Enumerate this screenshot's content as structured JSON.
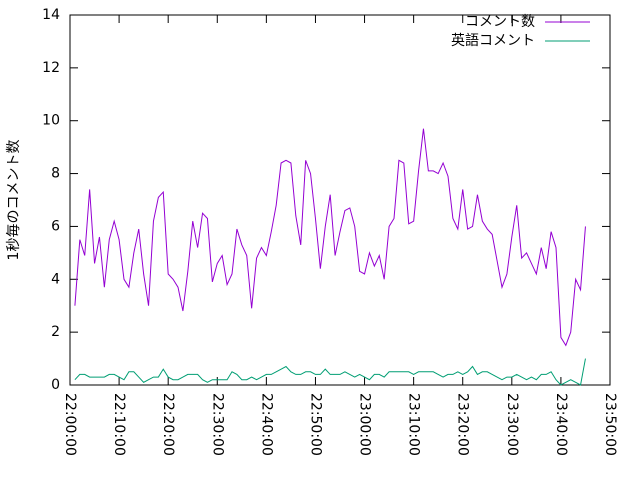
{
  "chart_data": {
    "type": "line",
    "y_label": "1秒毎のコメント数",
    "x": [
      "22:01:00",
      "22:02:00",
      "22:03:00",
      "22:04:00",
      "22:05:00",
      "22:06:00",
      "22:07:00",
      "22:08:00",
      "22:09:00",
      "22:10:00",
      "22:11:00",
      "22:12:00",
      "22:13:00",
      "22:14:00",
      "22:15:00",
      "22:16:00",
      "22:17:00",
      "22:18:00",
      "22:19:00",
      "22:20:00",
      "22:21:00",
      "22:22:00",
      "22:23:00",
      "22:24:00",
      "22:25:00",
      "22:26:00",
      "22:27:00",
      "22:28:00",
      "22:29:00",
      "22:30:00",
      "22:31:00",
      "22:32:00",
      "22:33:00",
      "22:34:00",
      "22:35:00",
      "22:36:00",
      "22:37:00",
      "22:38:00",
      "22:39:00",
      "22:40:00",
      "22:41:00",
      "22:42:00",
      "22:43:00",
      "22:44:00",
      "22:45:00",
      "22:46:00",
      "22:47:00",
      "22:48:00",
      "22:49:00",
      "22:50:00",
      "22:51:00",
      "22:52:00",
      "22:53:00",
      "22:54:00",
      "22:55:00",
      "22:56:00",
      "22:57:00",
      "22:58:00",
      "22:59:00",
      "23:00:00",
      "23:01:00",
      "23:02:00",
      "23:03:00",
      "23:04:00",
      "23:05:00",
      "23:06:00",
      "23:07:00",
      "23:08:00",
      "23:09:00",
      "23:10:00",
      "23:11:00",
      "23:12:00",
      "23:13:00",
      "23:14:00",
      "23:15:00",
      "23:16:00",
      "23:17:00",
      "23:18:00",
      "23:19:00",
      "23:20:00",
      "23:21:00",
      "23:22:00",
      "23:23:00",
      "23:24:00",
      "23:25:00",
      "23:26:00",
      "23:27:00",
      "23:28:00",
      "23:29:00",
      "23:30:00",
      "23:31:00",
      "23:32:00",
      "23:33:00",
      "23:34:00",
      "23:35:00",
      "23:36:00",
      "23:37:00",
      "23:38:00",
      "23:39:00",
      "23:40:00",
      "23:41:00",
      "23:42:00",
      "23:43:00",
      "23:44:00",
      "23:45:00"
    ],
    "series": [
      {
        "name": "コメント数",
        "color": "#9400d3",
        "values": [
          3.0,
          5.5,
          4.9,
          7.4,
          4.6,
          5.6,
          3.7,
          5.5,
          6.2,
          5.5,
          4.0,
          3.7,
          5.0,
          5.9,
          4.2,
          3.0,
          6.2,
          7.1,
          7.3,
          4.2,
          4.0,
          3.7,
          2.8,
          4.3,
          6.2,
          5.2,
          6.5,
          6.3,
          3.9,
          4.6,
          4.9,
          3.8,
          4.2,
          5.9,
          5.3,
          4.9,
          2.9,
          4.8,
          5.2,
          4.9,
          5.8,
          6.8,
          8.4,
          8.5,
          8.4,
          6.4,
          5.3,
          8.5,
          8.0,
          6.3,
          4.4,
          6.0,
          7.2,
          4.9,
          5.8,
          6.6,
          6.7,
          6.0,
          4.3,
          4.2,
          5.0,
          4.5,
          4.9,
          4.0,
          6.0,
          6.3,
          8.5,
          8.4,
          6.1,
          6.2,
          8.1,
          9.7,
          8.1,
          8.1,
          8.0,
          8.4,
          7.9,
          6.3,
          5.9,
          7.4,
          5.9,
          6.0,
          7.2,
          6.2,
          5.9,
          5.7,
          4.7,
          3.7,
          4.2,
          5.6,
          6.8,
          4.8,
          5.0,
          4.6,
          4.2,
          5.2,
          4.4,
          5.8,
          5.2,
          1.8,
          1.5,
          2.0,
          4.0,
          3.6,
          6.0
        ]
      },
      {
        "name": "英語コメント",
        "color": "#009e73",
        "values": [
          0.2,
          0.4,
          0.4,
          0.3,
          0.3,
          0.3,
          0.3,
          0.4,
          0.4,
          0.3,
          0.2,
          0.5,
          0.5,
          0.3,
          0.1,
          0.2,
          0.3,
          0.3,
          0.6,
          0.3,
          0.2,
          0.2,
          0.3,
          0.4,
          0.4,
          0.4,
          0.2,
          0.1,
          0.2,
          0.2,
          0.2,
          0.2,
          0.5,
          0.4,
          0.2,
          0.2,
          0.3,
          0.2,
          0.3,
          0.4,
          0.4,
          0.5,
          0.6,
          0.7,
          0.5,
          0.4,
          0.4,
          0.5,
          0.5,
          0.4,
          0.4,
          0.6,
          0.4,
          0.4,
          0.4,
          0.5,
          0.4,
          0.3,
          0.4,
          0.3,
          0.2,
          0.4,
          0.4,
          0.3,
          0.5,
          0.5,
          0.5,
          0.5,
          0.5,
          0.4,
          0.5,
          0.5,
          0.5,
          0.5,
          0.4,
          0.3,
          0.4,
          0.4,
          0.5,
          0.4,
          0.5,
          0.7,
          0.4,
          0.5,
          0.5,
          0.4,
          0.3,
          0.2,
          0.3,
          0.3,
          0.4,
          0.3,
          0.2,
          0.3,
          0.2,
          0.4,
          0.4,
          0.5,
          0.2,
          0.0,
          0.1,
          0.2,
          0.1,
          0.0,
          1.0
        ]
      }
    ],
    "xlim": [
      "22:00:00",
      "23:50:00"
    ],
    "xticks": [
      "22:00:00",
      "22:10:00",
      "22:20:00",
      "22:30:00",
      "22:40:00",
      "22:50:00",
      "23:00:00",
      "23:10:00",
      "23:20:00",
      "23:30:00",
      "23:40:00",
      "23:50:00"
    ],
    "ylim": [
      0,
      14
    ],
    "yticks": [
      0,
      2,
      4,
      6,
      8,
      10,
      12,
      14
    ],
    "legend": "top-right"
  }
}
